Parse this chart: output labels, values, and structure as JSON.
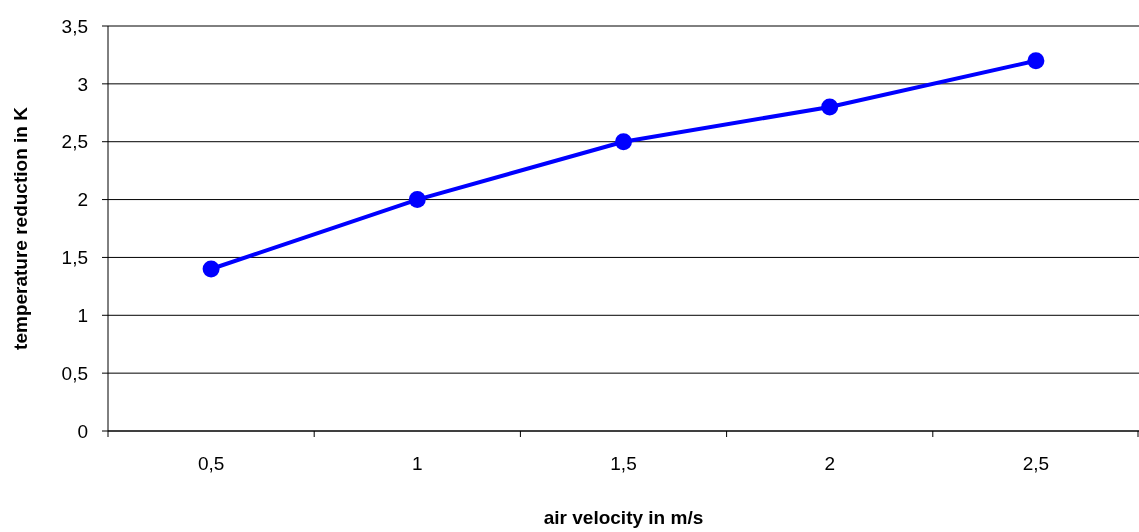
{
  "chart_data": {
    "type": "line",
    "xlabel": "air velocity in m/s",
    "ylabel": "temperature reduction in K",
    "categories": [
      "0,5",
      "1",
      "1,5",
      "2",
      "2,5"
    ],
    "series": [
      {
        "color": "#0000ff",
        "values": [
          1.4,
          2,
          2.5,
          2.8,
          3.2
        ]
      }
    ],
    "ylim": [
      0,
      3.5
    ],
    "yticks": [
      0,
      {
        "value": 0.5,
        "label": "0,5"
      },
      1,
      {
        "value": 1.5,
        "label": "1,5"
      },
      2,
      {
        "value": 2.5,
        "label": "2,5"
      },
      3,
      {
        "value": 3.5,
        "label": "3,5"
      }
    ],
    "grid": "y",
    "marker": "circle",
    "line_style": "solid"
  }
}
